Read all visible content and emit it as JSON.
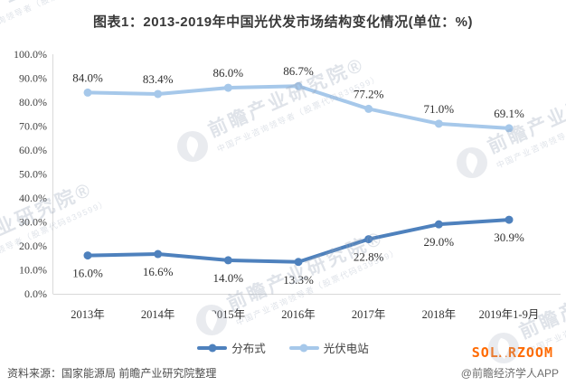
{
  "title": "图表1：2013-2019年中国光伏发市场结构变化情况(单位：%)",
  "chart_data": {
    "type": "line",
    "categories": [
      "2013年",
      "2014年",
      "2015年",
      "2016年",
      "2017年",
      "2018年",
      "2019年1-9月"
    ],
    "series": [
      {
        "name": "分布式",
        "color": "#4E81BD",
        "values": [
          16.0,
          16.6,
          14.0,
          13.3,
          22.8,
          29.0,
          30.9
        ],
        "label_position": "below"
      },
      {
        "name": "光伏电站",
        "color": "#A6C8EA",
        "values": [
          84.0,
          83.4,
          86.0,
          86.7,
          77.2,
          71.0,
          69.1
        ],
        "label_position": "above"
      }
    ],
    "ylim": [
      0,
      100
    ],
    "ytick_step": 10,
    "ytick_format": "0.0%",
    "grid": false,
    "legend_position": "bottom",
    "axis_color": "#d9d9d9",
    "label_color": "#2f2f2f",
    "tick_color": "#3f3f3f"
  },
  "watermark": {
    "logo": "pie-magnifier-logo",
    "big_text": "前瞻产业研究院®",
    "small_text": "中国产业咨询领导者（股票代码839599）"
  },
  "footer": {
    "source": "资料来源：国家能源局 前瞻产业研究院整理",
    "brand": "SOLARZOOM",
    "brand_color": "#FF6A00",
    "credit": "@前瞻经济学人APP"
  }
}
